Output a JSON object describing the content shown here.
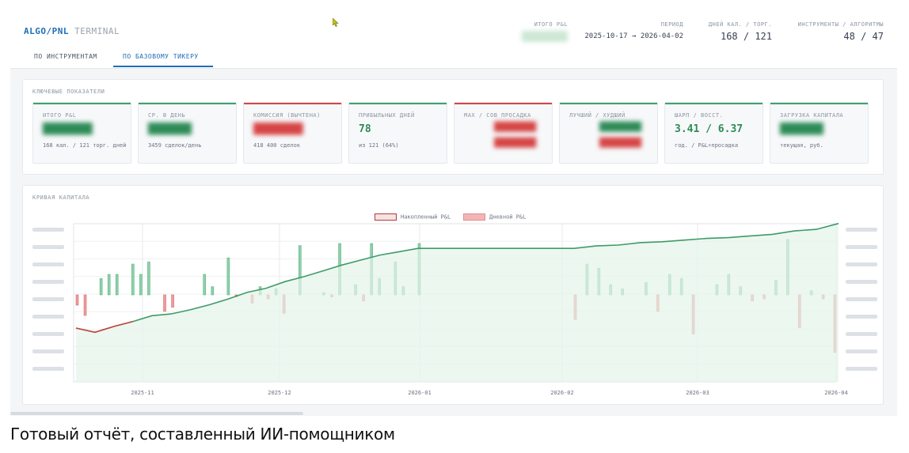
{
  "header": {
    "brand_primary": "ALGO/PNL",
    "brand_secondary": "TERMINAL",
    "total_pnl_label": "ИТОГО P&L",
    "total_pnl_value": "████████",
    "period_label": "ПЕРИОД",
    "period_value": "2025-10-17 → 2026-04-02",
    "days_label": "ДНЕЙ КАЛ. / ТОРГ.",
    "days_value": "168 / 121",
    "instruments_label": "ИНСТРУМЕНТЫ / АЛГОРИТМЫ",
    "instruments_value": "48 / 47"
  },
  "tabs": [
    {
      "label": "ПО ИНСТРУМЕНТАМ",
      "active": false
    },
    {
      "label": "ПО БАЗОВОМУ ТИКЕРУ",
      "active": true
    }
  ],
  "kpi_section": {
    "title": "КЛЮЧЕВЫЕ ПОКАЗАТЕЛИ",
    "cards": [
      {
        "label": "ИТОГО P&L",
        "value": "████████",
        "value2": "",
        "sub": "168 кал. / 121 торг. дней",
        "accent": "#3aa36b",
        "value_color": "#2e8b57",
        "blurred": true
      },
      {
        "label": "СР. В ДЕНЬ",
        "value": "███████",
        "value2": "",
        "sub": "3459 сделок/день",
        "accent": "#3aa36b",
        "value_color": "#2e8b57",
        "blurred": true
      },
      {
        "label": "КОМИССИЯ (ВЫЧТЕНА)",
        "value": "████████",
        "value2": "",
        "sub": "418 400 сделок",
        "accent": "#d64545",
        "value_color": "#d64545",
        "blurred": true
      },
      {
        "label": "ПРИБЫЛЬНЫХ ДНЕЙ",
        "value": "78",
        "value2": "",
        "sub": "из 121 (64%)",
        "accent": "#3aa36b",
        "value_color": "#2e8b57",
        "blurred": false
      },
      {
        "label": "MAX / СОВ ПРОСАДКА",
        "value": "",
        "value2": "████████",
        "sub": "",
        "accent": "#d64545",
        "value_color": "#d64545",
        "blurred": true
      },
      {
        "label": "ЛУЧШИЙ / ХУДШИЙ",
        "value": "",
        "value2": "████████",
        "sub": "",
        "accent": "#3aa36b",
        "value_color": "#2e8b57",
        "blurred": true
      },
      {
        "label": "ШАРП / ВОССТ.",
        "value": "3.41 / 6.37",
        "value2": "",
        "sub": "год. / P&L÷просадка",
        "accent": "#3aa36b",
        "value_color": "#2e8b57",
        "blurred": false
      },
      {
        "label": "ЗАГРУЗКА КАПИТАЛА",
        "value": "███████",
        "value2": "",
        "sub": "текущая, руб.",
        "accent": "#3aa36b",
        "value_color": "#2e8b57",
        "blurred": true
      }
    ]
  },
  "equity_section": {
    "title": "КРИВАЯ КАПИТАЛА",
    "legend": [
      {
        "label": "Накопленный P&L",
        "color": "#b83a3a",
        "fill": "#f3e3e3"
      },
      {
        "label": "Дневной P&L",
        "color": "#e58c8c",
        "fill": "#f1b5b5"
      }
    ]
  },
  "colors": {
    "accent": "#1f6fb5",
    "positive": "#3aa36b",
    "negative": "#d64545"
  },
  "chart_data": {
    "type": "bar",
    "title": "",
    "xlabel": "",
    "ylabel": "",
    "x_tick_labels": [
      "2025-11",
      "2025-12",
      "2026-01",
      "2026-02",
      "2026-03",
      "2026-04"
    ],
    "grid": true,
    "legend_position": "top-center",
    "series": [
      {
        "name": "Дневной P&L",
        "type": "bar",
        "values": [
          -0.5,
          -1.0,
          0,
          0.8,
          1.0,
          1.0,
          0,
          1.5,
          1.0,
          1.6,
          0,
          -0.8,
          -0.6,
          0,
          0,
          0,
          1.0,
          0.4,
          0,
          1.8,
          -0.1,
          0,
          -0.4,
          0.4,
          -0.2,
          0.3,
          -0.9,
          0,
          2.4,
          0,
          0,
          0.1,
          -0.1,
          2.5,
          0,
          0.5,
          -0.3,
          2.5,
          0.8,
          0,
          1.6,
          0.4,
          0,
          2.5,
          -1.2,
          1.5,
          1.3,
          0.5,
          0.3,
          0,
          0.6,
          -0.8,
          1.0,
          0.8,
          -1.9,
          0,
          0.5,
          1.0,
          0.4,
          -0.3,
          -0.2,
          0.7,
          2.7,
          -1.6,
          0.2,
          -0.2,
          -2.8
        ],
        "color_positive": "#5cb585",
        "color_negative": "#dc6f6f"
      },
      {
        "name": "Накопленный P&L",
        "type": "line",
        "values": [
          -4.0,
          -4.5,
          -3.8,
          -3.2,
          -2.5,
          -2.3,
          -1.8,
          -1.2,
          -0.5,
          0.3,
          0.8,
          1.6,
          2.2,
          2.9,
          3.6,
          4.2,
          4.8,
          5.2,
          5.6,
          5.6,
          5.6,
          5.6,
          5.6,
          5.6,
          5.6,
          5.6,
          5.6,
          5.6,
          5.6,
          5.9,
          6.0,
          6.3,
          6.4,
          6.6,
          6.8,
          6.9,
          7.1,
          7.3,
          7.7,
          7.9,
          8.6
        ],
        "color": "#3e9b67"
      }
    ]
  },
  "caption": "Готовый отчёт, составленный ИИ-помощником"
}
